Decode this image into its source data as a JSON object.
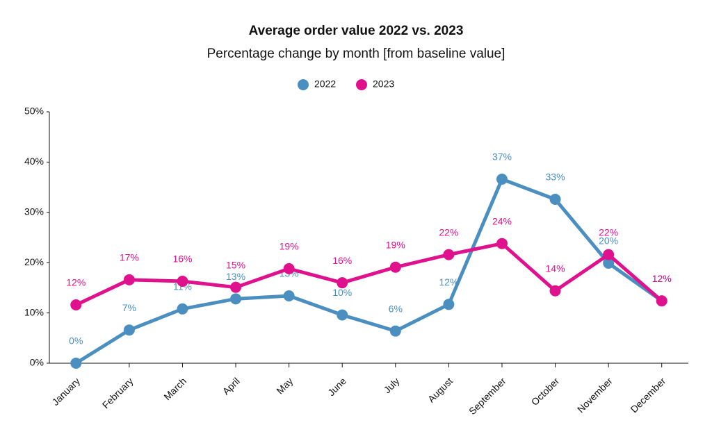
{
  "chart_data": {
    "type": "line",
    "title": "Average order value 2022 vs. 2023",
    "subtitle": "Percentage change by month [from baseline value]",
    "categories": [
      "January",
      "February",
      "March",
      "April",
      "May",
      "June",
      "July",
      "August",
      "September",
      "October",
      "November",
      "December"
    ],
    "series": [
      {
        "name": "2022",
        "color": "#4a8fc0",
        "values": [
          0,
          6.6,
          10.8,
          12.8,
          13.4,
          9.6,
          6.4,
          11.7,
          36.6,
          32.6,
          19.9,
          12.4
        ],
        "value_labels": [
          "0%",
          "7%",
          "11%",
          "13%",
          "13%",
          "10%",
          "6%",
          "12%",
          "37%",
          "33%",
          "20%",
          "12%"
        ]
      },
      {
        "name": "2023",
        "color": "#e0118d",
        "values": [
          11.6,
          16.6,
          16.3,
          15.1,
          18.8,
          16.0,
          19.1,
          21.6,
          23.8,
          14.4,
          21.6,
          12.4
        ],
        "value_labels": [
          "12%",
          "17%",
          "16%",
          "15%",
          "19%",
          "16%",
          "19%",
          "22%",
          "24%",
          "14%",
          "22%",
          "12%"
        ]
      }
    ],
    "ylim": [
      0,
      50
    ],
    "yticks": [
      {
        "value": 0,
        "label": "0%"
      },
      {
        "value": 10,
        "label": "10%"
      },
      {
        "value": 20,
        "label": "20%"
      },
      {
        "value": 30,
        "label": "30%"
      },
      {
        "value": 40,
        "label": "40%"
      },
      {
        "value": 50,
        "label": "50%"
      }
    ],
    "legend": "top"
  }
}
